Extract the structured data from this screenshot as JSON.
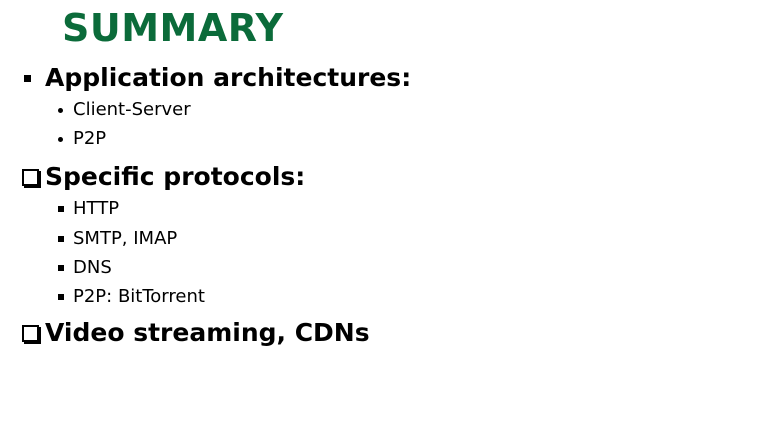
{
  "theme": {
    "title_color": "#0b6b3a",
    "text_color": "#000000"
  },
  "title": "SUMMARY",
  "sections": [
    {
      "heading": "Application architectures:",
      "bullet": "filled-square",
      "items": [
        "Client-Server",
        "P2P"
      ],
      "item_bullet": "dot"
    },
    {
      "heading": "Specific protocols:",
      "bullet": "hollow-box",
      "items": [
        "HTTP",
        "SMTP, IMAP",
        "DNS",
        "P2P: BitTorrent"
      ],
      "item_bullet": "filled-square"
    },
    {
      "heading": "Video streaming, CDNs",
      "bullet": "hollow-box",
      "items": []
    }
  ]
}
